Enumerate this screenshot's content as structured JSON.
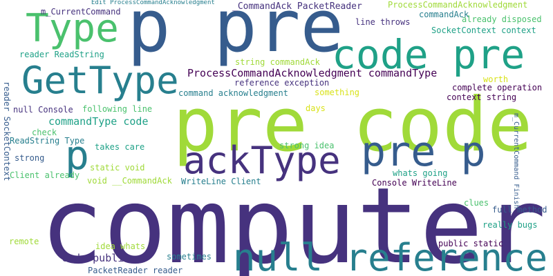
{
  "palette": {
    "dark_blue": "#46327e",
    "steel_blue": "#365c8d",
    "teal": "#277f8e",
    "green": "#1fa187",
    "light_green": "#4ac16d",
    "lime": "#a0da39",
    "yellow": "#d8e219",
    "purple": "#440154"
  },
  "words": [
    {
      "text": "computer"
    },
    {
      "text": "pre code"
    },
    {
      "text": "p pre"
    },
    {
      "text": "code pre"
    },
    {
      "text": "null reference"
    },
    {
      "text": "GetType"
    },
    {
      "text": "ackType"
    },
    {
      "text": "pre p"
    },
    {
      "text": "Type"
    },
    {
      "text": "p"
    },
    {
      "text": "ProcessCommandAcknowledgment commandType"
    },
    {
      "text": "commandType code"
    },
    {
      "text": "code public"
    },
    {
      "text": "_CommandAck PacketReader"
    },
    {
      "text": "ProcessCommandAcknowledgment"
    },
    {
      "text": "m_CurrentCommand"
    },
    {
      "text": "commandAck"
    },
    {
      "text": "line throws"
    },
    {
      "text": "already disposed"
    },
    {
      "text": "SocketContext context"
    },
    {
      "text": "reader ReadString"
    },
    {
      "text": "string commandAck"
    },
    {
      "text": "reference exception"
    },
    {
      "text": "worth"
    },
    {
      "text": "complete operation"
    },
    {
      "text": "command acknowledgment"
    },
    {
      "text": "something"
    },
    {
      "text": "context string"
    },
    {
      "text": "null Console"
    },
    {
      "text": "following line"
    },
    {
      "text": "days"
    },
    {
      "text": "check"
    },
    {
      "text": "ReadString Type"
    },
    {
      "text": "takes care"
    },
    {
      "text": "strong idea"
    },
    {
      "text": "strong"
    },
    {
      "text": "static void"
    },
    {
      "text": "whats going"
    },
    {
      "text": "Client already"
    },
    {
      "text": "void __CommandAck"
    },
    {
      "text": "WriteLine Client"
    },
    {
      "text": "Console WriteLine"
    },
    {
      "text": "clues"
    },
    {
      "text": "full method"
    },
    {
      "text": "really bugs"
    },
    {
      "text": "remote"
    },
    {
      "text": "idea whats"
    },
    {
      "text": "public static"
    },
    {
      "text": "sometimes"
    },
    {
      "text": "PacketReader reader"
    },
    {
      "text": "Edit ProcessCommandAcknowledgment"
    },
    {
      "text": "reader SocketContext"
    },
    {
      "text": "m_CurrentCommand Finish"
    }
  ]
}
